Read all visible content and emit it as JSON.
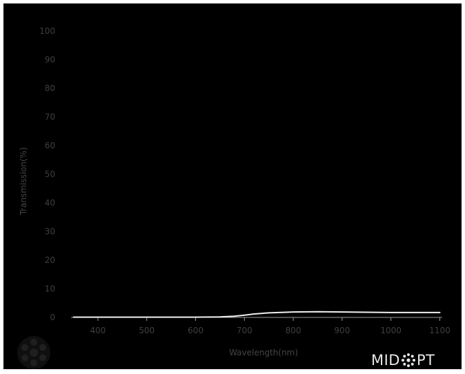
{
  "chart_data": {
    "type": "line",
    "title": "",
    "xlabel": "Wavelength(nm)",
    "ylabel": "Transmission(%)",
    "xlim": [
      345,
      1105
    ],
    "ylim": [
      0,
      100
    ],
    "x_ticks": [
      400,
      500,
      600,
      700,
      800,
      900,
      1000,
      1100
    ],
    "y_ticks": [
      0,
      10,
      20,
      30,
      40,
      50,
      60,
      70,
      80,
      90,
      100
    ],
    "grid": false,
    "series": [
      {
        "color": "#f0f0f0",
        "x": [
          350,
          400,
          500,
          600,
          650,
          680,
          700,
          720,
          750,
          800,
          850,
          900,
          950,
          1000,
          1050,
          1100
        ],
        "y": [
          0.1,
          0.1,
          0.1,
          0.1,
          0.2,
          0.4,
          0.8,
          1.2,
          1.6,
          1.9,
          2.0,
          1.9,
          1.8,
          1.7,
          1.7,
          1.7
        ]
      }
    ]
  },
  "brand": {
    "left": "MID",
    "right": "PT",
    "icon": "starburst-o-icon"
  },
  "emblem": {
    "icon": "lens-emblem-icon"
  }
}
